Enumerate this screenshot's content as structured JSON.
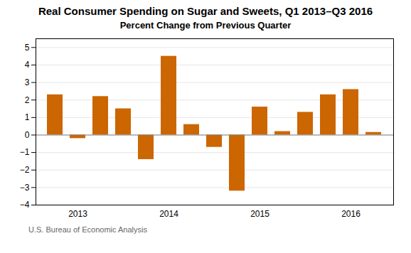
{
  "chart_data": {
    "type": "bar",
    "title": "Real Consumer Spending on Sugar and Sweets, Q1 2013–Q3 2016",
    "subtitle": "Percent Change from Previous Quarter",
    "caption": "U.S. Bureau of Economic Analysis",
    "categories": [
      null,
      "2013",
      null,
      null,
      null,
      "2014",
      null,
      null,
      null,
      "2015",
      null,
      null,
      null,
      "2016",
      null
    ],
    "values": [
      2.3,
      -0.2,
      2.2,
      1.5,
      -1.4,
      4.5,
      0.6,
      -0.7,
      -3.2,
      1.6,
      0.2,
      1.3,
      2.3,
      2.6,
      0.15
    ],
    "color": "#CC6600",
    "ylim": [
      -4,
      5.5
    ],
    "yticks": [
      -4,
      -3,
      -2,
      -1,
      0,
      1,
      2,
      3,
      4,
      5
    ],
    "grid": true
  }
}
